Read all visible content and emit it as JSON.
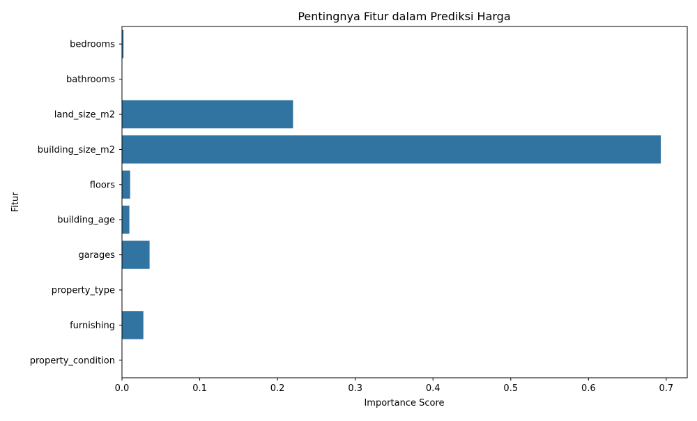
{
  "chart_data": {
    "type": "bar",
    "orientation": "horizontal",
    "title": "Pentingnya Fitur dalam Prediksi Harga",
    "xlabel": "Importance Score",
    "ylabel": "Fitur",
    "categories": [
      "bedrooms",
      "bathrooms",
      "land_size_m2",
      "building_size_m2",
      "floors",
      "building_age",
      "garages",
      "property_type",
      "furnishing",
      "property_condition"
    ],
    "values": [
      0.002,
      0.0,
      0.22,
      0.693,
      0.0105,
      0.0095,
      0.0355,
      0.0,
      0.0275,
      0.0
    ],
    "xlim": [
      0,
      0.727
    ],
    "xticks": [
      0,
      0.1,
      0.2,
      0.3,
      0.4,
      0.5,
      0.6,
      0.7
    ],
    "xtick_labels": [
      "0.0",
      "0.1",
      "0.2",
      "0.3",
      "0.4",
      "0.5",
      "0.6",
      "0.7"
    ],
    "grid": false,
    "legend": "none",
    "bar_color": "#3274a1"
  }
}
